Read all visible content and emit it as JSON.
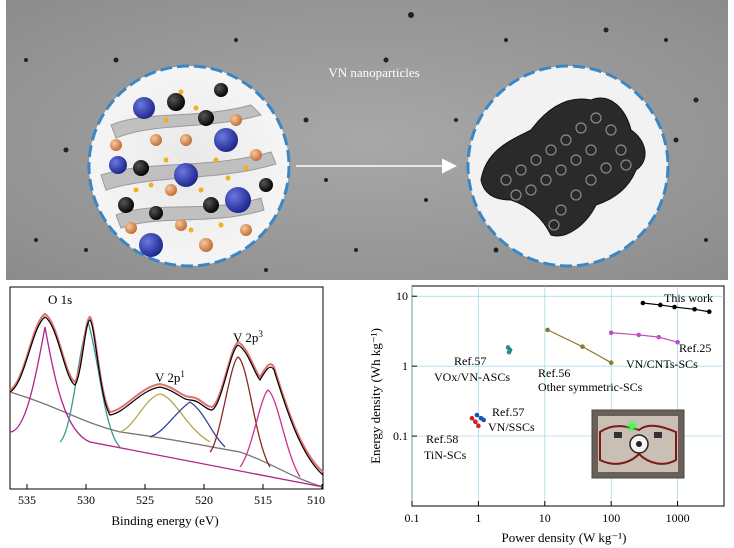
{
  "top_panel": {
    "label": "VN nanoparticles",
    "colors": {
      "background": "#9a9a9a",
      "circle_border": "#3a87c6",
      "arrow": "#ffffff"
    }
  },
  "xps": {
    "xlabel": "Binding energy (eV)",
    "ticks": [
      "535",
      "530",
      "525",
      "520",
      "515",
      "510"
    ],
    "peaks": {
      "o1s": "O 1s",
      "v2p1": "V 2p",
      "v2p1_sup": "1",
      "v2p3": "V 2p",
      "v2p3_sup": "3"
    }
  },
  "chart_data": {
    "type": "scatter",
    "xlabel": "Power density (W kg⁻¹)",
    "ylabel": "Energy density (Wh kg⁻¹)",
    "x_scale": "log",
    "y_scale": "log",
    "xlim": [
      0.1,
      5000
    ],
    "ylim": [
      0.01,
      14
    ],
    "x_ticks": [
      "0.1",
      "1",
      "10",
      "100",
      "1000"
    ],
    "y_ticks": [
      "0.1",
      "1",
      "10"
    ],
    "grid": true,
    "series": [
      {
        "name": "This work",
        "color": "#000000",
        "points": [
          [
            300,
            8.0
          ],
          [
            550,
            7.5
          ],
          [
            900,
            7.0
          ],
          [
            1800,
            6.5
          ],
          [
            3000,
            6.0
          ]
        ]
      },
      {
        "name": "Ref.25 VN/CNTs-SCs",
        "color": "#c04fc0",
        "points": [
          [
            100,
            3.0
          ],
          [
            260,
            2.8
          ],
          [
            520,
            2.6
          ],
          [
            1000,
            2.2
          ]
        ]
      },
      {
        "name": "Ref.56 Other symmetric-SCs",
        "color": "#8b7a2e",
        "points": [
          [
            11,
            3.3
          ],
          [
            37,
            1.9
          ],
          [
            100,
            1.12
          ]
        ]
      },
      {
        "name": "Ref.57 VOx/VN-ASCs",
        "color": "#2e8a8a",
        "points": [
          [
            2.8,
            1.85
          ],
          [
            3.0,
            1.7
          ],
          [
            2.9,
            1.58
          ]
        ]
      },
      {
        "name": "Ref.57 VN/SSCs",
        "color": "#2050c0",
        "points": [
          [
            0.95,
            0.2
          ],
          [
            1.1,
            0.18
          ],
          [
            1.2,
            0.17
          ]
        ]
      },
      {
        "name": "Ref.58 TiN-SCs",
        "color": "#d02020",
        "points": [
          [
            0.8,
            0.18
          ],
          [
            0.9,
            0.16
          ],
          [
            1.0,
            0.14
          ]
        ]
      }
    ],
    "labels": {
      "this_work": "This work",
      "ref25a": "Ref.25",
      "ref25b": "VN/CNTs-SCs",
      "ref56a": "Ref.56",
      "ref56b": "Other symmetric-SCs",
      "ref57a": "Ref.57",
      "ref57b": "VOx/VN-ASCs",
      "ref57c": "Ref.57",
      "ref57d": "VN/SSCs",
      "ref58a": "Ref.58",
      "ref58b": "TiN-SCs"
    }
  }
}
